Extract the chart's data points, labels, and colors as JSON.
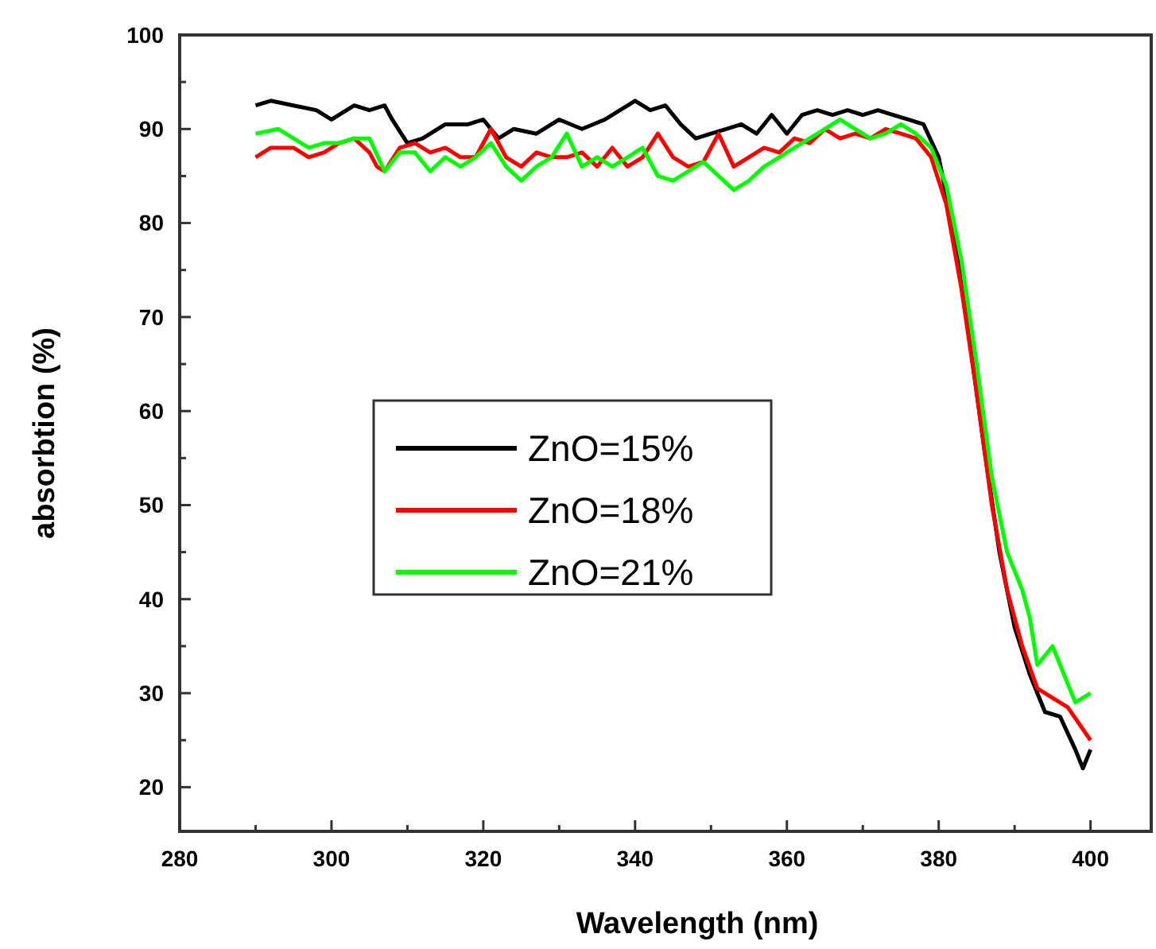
{
  "chart_data": {
    "type": "line",
    "xlabel": "Wavelength (nm)",
    "ylabel": "absorbtion (%)",
    "xlim": [
      280,
      408
    ],
    "ylim": [
      15.3,
      100
    ],
    "xticks": [
      280,
      {
        "value": 290,
        "label": null
      },
      300,
      {
        "value": 310,
        "label": null
      },
      320,
      {
        "value": 330,
        "label": null
      },
      340,
      {
        "value": 350,
        "label": null
      },
      360,
      {
        "value": 370,
        "label": null
      },
      380,
      {
        "value": 390,
        "label": null
      },
      400
    ],
    "yticks": [
      20,
      {
        "value": 25,
        "label": null
      },
      30,
      {
        "value": 35,
        "label": null
      },
      40,
      {
        "value": 45,
        "label": null
      },
      50,
      {
        "value": 55,
        "label": null
      },
      60,
      {
        "value": 65,
        "label": null
      },
      70,
      {
        "value": 75,
        "label": null
      },
      80,
      {
        "value": 85,
        "label": null
      },
      90,
      {
        "value": 95,
        "label": null
      },
      100
    ],
    "legend": "left",
    "grid": false,
    "marker": "none",
    "line_style": "solid",
    "series": [
      {
        "name": "ZnO=15%",
        "color": "#000000",
        "x": [
          290,
          292,
          295,
          298,
          300,
          303,
          305,
          307,
          308,
          310,
          312,
          315,
          318,
          320,
          322,
          324,
          327,
          330,
          333,
          336,
          340,
          342,
          344,
          346,
          348,
          350,
          352,
          354,
          356,
          358,
          360,
          362,
          364,
          366,
          368,
          370,
          372,
          374,
          376,
          378,
          380,
          382,
          384,
          386,
          388,
          390,
          392,
          394,
          396,
          398,
          399,
          400
        ],
        "values": [
          92.5,
          93,
          92.5,
          92,
          91,
          92.5,
          92,
          92.5,
          91,
          88.5,
          89,
          90.5,
          90.5,
          91,
          89,
          90,
          89.5,
          91,
          90,
          91,
          93,
          92,
          92.5,
          90.5,
          89,
          89.5,
          90,
          90.5,
          89.5,
          91.5,
          89.5,
          91.5,
          92,
          91.5,
          92,
          91.5,
          92,
          91.5,
          91,
          90.5,
          87,
          79,
          68,
          56,
          45,
          37,
          32,
          28,
          27.5,
          24,
          22,
          24
        ]
      },
      {
        "name": "ZnO=18%",
        "color": "#ff0000",
        "x": [
          290,
          292,
          295,
          297,
          299,
          301,
          303,
          305,
          306,
          307,
          309,
          311,
          313,
          315,
          317,
          319,
          321,
          323,
          325,
          327,
          329,
          331,
          333,
          335,
          337,
          339,
          341,
          343,
          345,
          347,
          349,
          351,
          353,
          355,
          357,
          359,
          361,
          363,
          365,
          367,
          369,
          371,
          373,
          375,
          377,
          379,
          381,
          383,
          385,
          387,
          389,
          391,
          393,
          395,
          397,
          400
        ],
        "values": [
          87,
          88,
          88,
          87,
          87.5,
          88.5,
          89,
          87.5,
          86,
          85.5,
          88,
          88.5,
          87.5,
          88,
          87,
          87,
          90,
          87,
          86,
          87.5,
          87,
          87,
          87.5,
          86,
          88,
          86,
          87,
          89.5,
          87,
          86,
          86.5,
          89.5,
          86,
          87,
          88,
          87.5,
          89,
          88.5,
          90,
          89,
          89.5,
          89,
          90,
          89.5,
          89,
          87,
          82,
          73,
          62,
          50,
          41,
          35,
          30.5,
          29.5,
          28.5,
          25
        ]
      },
      {
        "name": "ZnO=21%",
        "color": "#00ff00",
        "x": [
          290,
          293,
          295,
          297,
          299,
          301,
          303,
          305,
          307,
          309,
          311,
          313,
          315,
          317,
          319,
          321,
          323,
          325,
          327,
          329,
          331,
          333,
          335,
          337,
          339,
          341,
          343,
          345,
          347,
          349,
          351,
          353,
          355,
          357,
          359,
          361,
          363,
          365,
          367,
          369,
          371,
          373,
          375,
          377,
          379,
          381,
          383,
          385,
          387,
          389,
          391,
          392,
          393,
          395,
          397,
          398,
          400
        ],
        "values": [
          89.5,
          90,
          89,
          88,
          88.5,
          88.5,
          89,
          89,
          85.5,
          87.5,
          87.5,
          85.5,
          87,
          86,
          87,
          88.5,
          86,
          84.5,
          86,
          87,
          89.5,
          86,
          87,
          86,
          87,
          88,
          85,
          84.5,
          85.5,
          86.5,
          85,
          83.5,
          84.5,
          86,
          87,
          88,
          89,
          90,
          91,
          90,
          89,
          89.5,
          90.5,
          89.5,
          88,
          84,
          76,
          65,
          53,
          45,
          41,
          38,
          33,
          35,
          31,
          29,
          30
        ]
      }
    ]
  }
}
